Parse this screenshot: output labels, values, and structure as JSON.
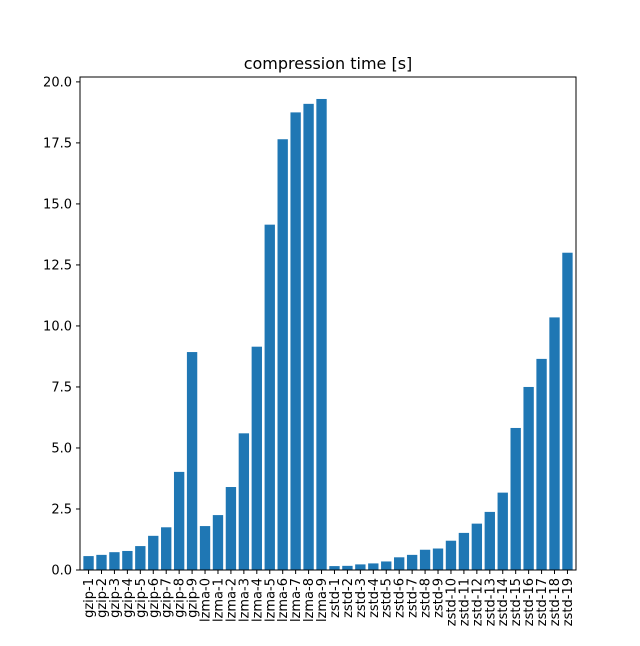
{
  "chart_data": {
    "type": "bar",
    "title": "compression time [s]",
    "xlabel": "",
    "ylabel": "",
    "ylim": [
      0,
      20
    ],
    "yticks": [
      "0.0",
      "2.5",
      "5.0",
      "7.5",
      "10.0",
      "12.5",
      "15.0",
      "17.5",
      "20.0"
    ],
    "grid": false,
    "bar_color": "#1f77b4",
    "categories": [
      "gzip-1",
      "gzip-2",
      "gzip-3",
      "gzip-4",
      "gzip-5",
      "gzip-6",
      "gzip-7",
      "gzip-8",
      "gzip-9",
      "lzma-0",
      "lzma-1",
      "lzma-2",
      "lzma-3",
      "lzma-4",
      "lzma-5",
      "lzma-6",
      "lzma-7",
      "lzma-8",
      "lzma-9",
      "zstd-1",
      "zstd-2",
      "zstd-3",
      "zstd-4",
      "zstd-5",
      "zstd-6",
      "zstd-7",
      "zstd-8",
      "zstd-9",
      "zstd-10",
      "zstd-11",
      "zstd-12",
      "zstd-13",
      "zstd-14",
      "zstd-15",
      "zstd-16",
      "zstd-17",
      "zstd-18",
      "zstd-19"
    ],
    "values": [
      0.57,
      0.62,
      0.73,
      0.78,
      0.98,
      1.4,
      1.75,
      4.02,
      8.93,
      1.8,
      2.25,
      3.4,
      5.6,
      9.15,
      14.15,
      17.65,
      18.75,
      19.1,
      19.3,
      0.16,
      0.17,
      0.23,
      0.27,
      0.35,
      0.52,
      0.62,
      0.83,
      0.88,
      1.2,
      1.52,
      1.9,
      2.38,
      3.17,
      5.82,
      7.5,
      8.65,
      10.35,
      13.0
    ]
  }
}
